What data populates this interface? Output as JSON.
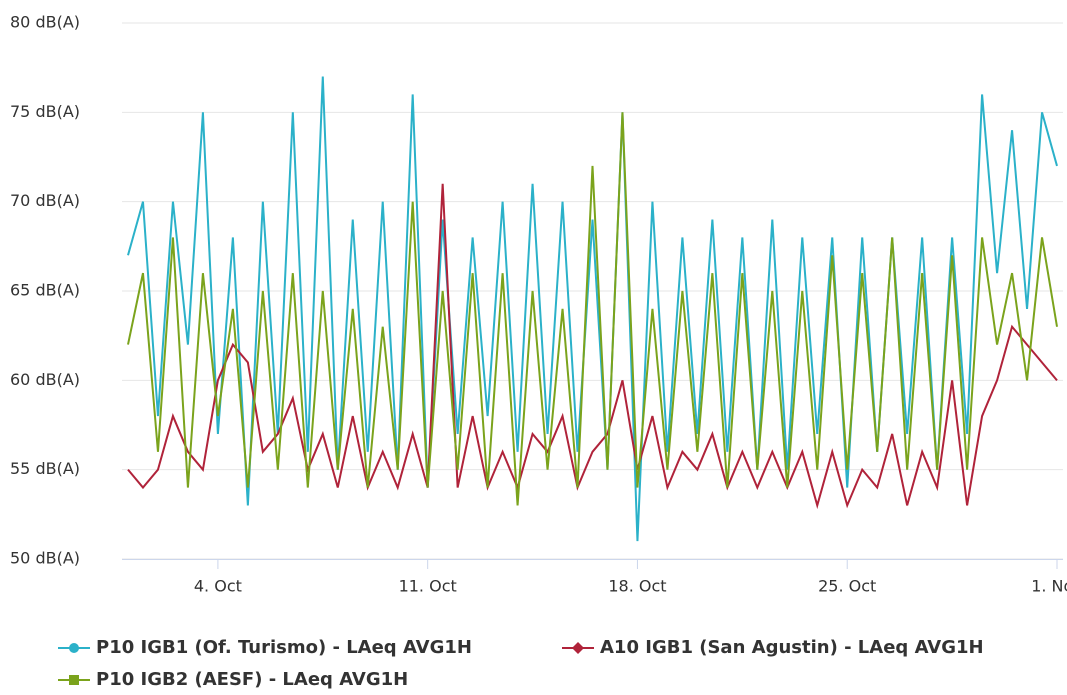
{
  "chart_data": {
    "type": "line",
    "x": [
      1,
      1.5,
      2,
      2.5,
      3,
      3.5,
      4,
      4.5,
      5,
      5.5,
      6,
      6.5,
      7,
      7.5,
      8,
      8.5,
      9,
      9.5,
      10,
      10.5,
      11,
      11.5,
      12,
      12.5,
      13,
      13.5,
      14,
      14.5,
      15,
      15.5,
      16,
      16.5,
      17,
      17.5,
      18,
      18.5,
      19,
      19.5,
      20,
      20.5,
      21,
      21.5,
      22,
      22.5,
      23,
      23.5,
      24,
      24.5,
      25,
      25.5,
      26,
      26.5,
      27,
      27.5,
      28,
      28.5,
      29,
      29.5,
      30,
      30.5,
      31,
      31.5,
      32
    ],
    "series": [
      {
        "name": "P10 IGB1 (Of. Turismo) - LAeq AVG1H",
        "color": "#2bb1c9",
        "marker": "circle",
        "values": [
          67,
          70,
          58,
          70,
          62,
          75,
          57,
          68,
          53,
          70,
          57,
          75,
          56,
          77,
          55,
          69,
          56,
          70,
          55,
          76,
          54,
          69,
          57,
          68,
          58,
          70,
          56,
          71,
          57,
          70,
          56,
          69,
          55,
          75,
          51,
          70,
          56,
          68,
          57,
          69,
          56,
          68,
          55,
          69,
          55,
          68,
          57,
          68,
          54,
          68,
          56,
          68,
          57,
          68,
          55,
          68,
          57,
          76,
          66,
          74,
          64,
          75,
          72
        ]
      },
      {
        "name": "A10 IGB1 (San Agustin) - LAeq AVG1H",
        "color": "#b0233a",
        "marker": "diamond",
        "values": [
          55,
          54,
          55,
          58,
          56,
          55,
          60,
          62,
          61,
          56,
          57,
          59,
          55,
          57,
          54,
          58,
          54,
          56,
          54,
          57,
          54,
          71,
          54,
          58,
          54,
          56,
          54,
          57,
          56,
          58,
          54,
          56,
          57,
          60,
          55,
          58,
          54,
          56,
          55,
          57,
          54,
          56,
          54,
          56,
          54,
          56,
          53,
          56,
          53,
          55,
          54,
          57,
          53,
          56,
          54,
          60,
          53,
          58,
          60,
          63,
          62,
          61,
          60
        ]
      },
      {
        "name": "P10 IGB2 (AESF) - LAeq AVG1H",
        "color": "#7ba31c",
        "marker": "square",
        "values": [
          62,
          66,
          56,
          68,
          54,
          66,
          58,
          64,
          54,
          65,
          55,
          66,
          54,
          65,
          55,
          64,
          54,
          63,
          55,
          70,
          54,
          65,
          55,
          66,
          54,
          66,
          53,
          65,
          55,
          64,
          54,
          72,
          55,
          75,
          54,
          64,
          55,
          65,
          56,
          66,
          54,
          66,
          55,
          65,
          54,
          65,
          55,
          67,
          55,
          66,
          56,
          68,
          55,
          66,
          55,
          67,
          55,
          68,
          62,
          66,
          60,
          68,
          63
        ]
      }
    ],
    "xlim": [
      0.8,
      32.2
    ],
    "xticks": [
      {
        "value": 4,
        "label": "4. Oct"
      },
      {
        "value": 11,
        "label": "11. Oct"
      },
      {
        "value": 18,
        "label": "18. Oct"
      },
      {
        "value": 25,
        "label": "25. Oct"
      },
      {
        "value": 32,
        "label": "1. Nov"
      }
    ],
    "ylim": [
      50,
      80
    ],
    "yticks": [
      {
        "value": 50,
        "label": "50 dB(A)"
      },
      {
        "value": 55,
        "label": "55 dB(A)"
      },
      {
        "value": 60,
        "label": "60 dB(A)"
      },
      {
        "value": 65,
        "label": "65 dB(A)"
      },
      {
        "value": 70,
        "label": "70 dB(A)"
      },
      {
        "value": 75,
        "label": "75 dB(A)"
      },
      {
        "value": 80,
        "label": "80 dB(A)"
      }
    ],
    "grid": true,
    "legend": "bottom"
  }
}
